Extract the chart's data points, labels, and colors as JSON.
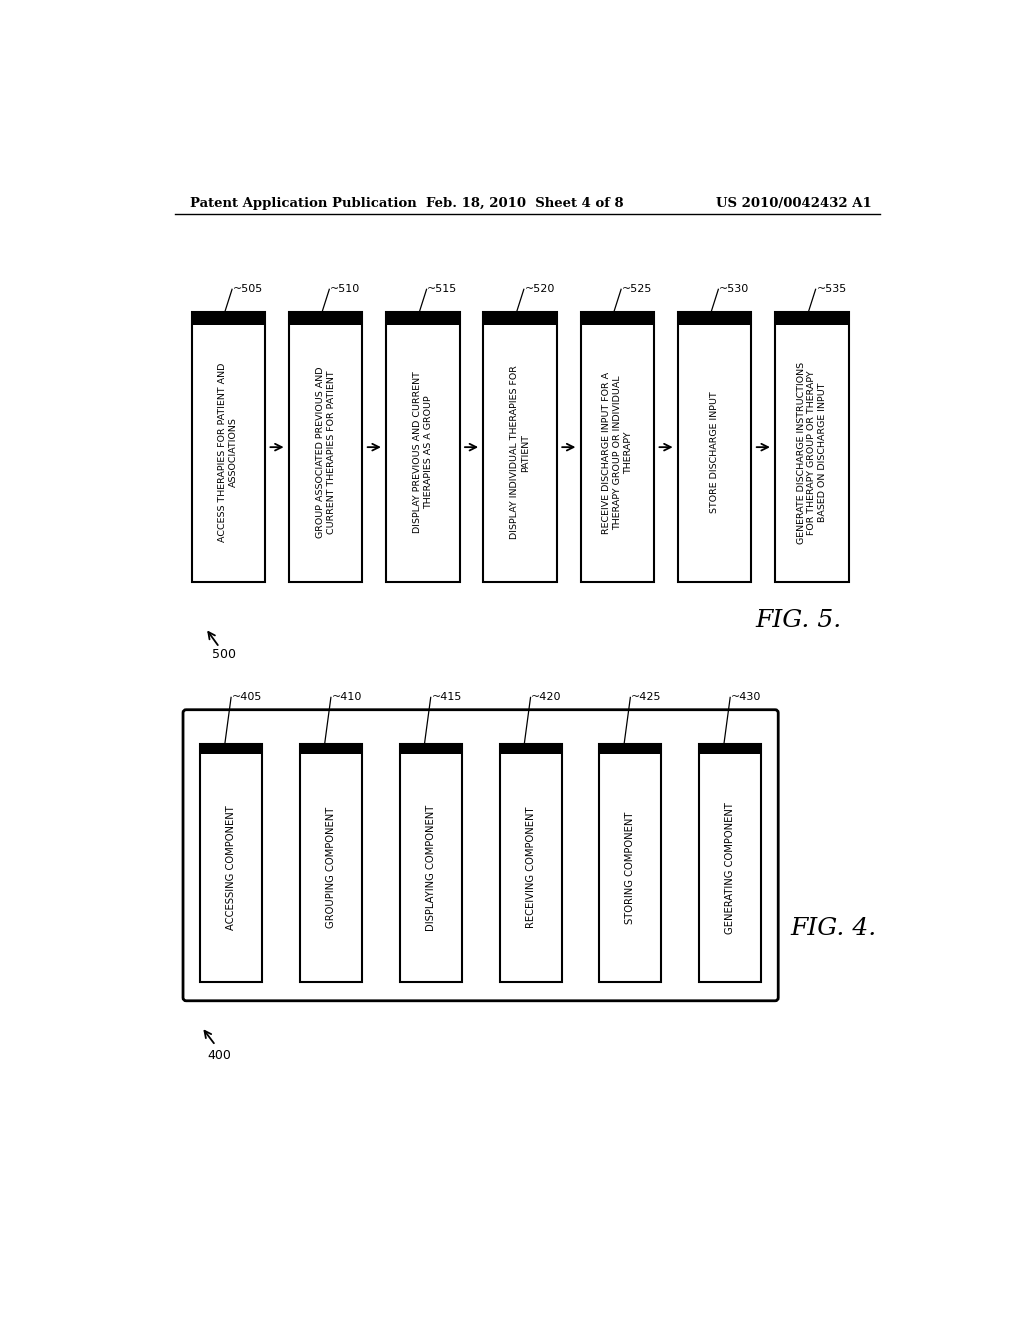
{
  "bg_color": "#ffffff",
  "header_left": "Patent Application Publication",
  "header_center": "Feb. 18, 2010  Sheet 4 of 8",
  "header_right": "US 2010/0042432 A1",
  "fig5": {
    "label": "500",
    "figure_label": "FIG. 5.",
    "boxes": [
      {
        "id": "505",
        "text": "ACCESS THERAPIES FOR PATIENT AND\nASSOCIATIONS"
      },
      {
        "id": "510",
        "text": "GROUP ASSOCIATED PREVIOUS AND\nCURRENT THERAPIES FOR PATIENT"
      },
      {
        "id": "515",
        "text": "DISPLAY PREVIOUS AND CURRENT\nTHERAPIES AS A GROUP"
      },
      {
        "id": "520",
        "text": "DISPLAY INDIVIDUAL THERAPIES FOR\nPATIENT"
      },
      {
        "id": "525",
        "text": "RECEIVE DISCHARGE INPUT FOR A\nTHERAPY GROUP OR INDIVIDUAL\nTHERAPY"
      },
      {
        "id": "530",
        "text": "STORE DISCHARGE INPUT"
      },
      {
        "id": "535",
        "text": "GENERATE DISCHARGE INSTRUCTIONS\nFOR THERAPY GROUP OR THERAPY\nBASED ON DISCHARGE INPUT"
      }
    ]
  },
  "fig4": {
    "label": "400",
    "figure_label": "FIG. 4.",
    "boxes": [
      {
        "id": "405",
        "text": "ACCESSING COMPONENT"
      },
      {
        "id": "410",
        "text": "GROUPING COMPONENT"
      },
      {
        "id": "415",
        "text": "DISPLAYING COMPONENT"
      },
      {
        "id": "420",
        "text": "RECEIVING COMPONENT"
      },
      {
        "id": "425",
        "text": "STORING COMPONENT"
      },
      {
        "id": "430",
        "text": "GENERATING COMPONENT"
      }
    ]
  }
}
